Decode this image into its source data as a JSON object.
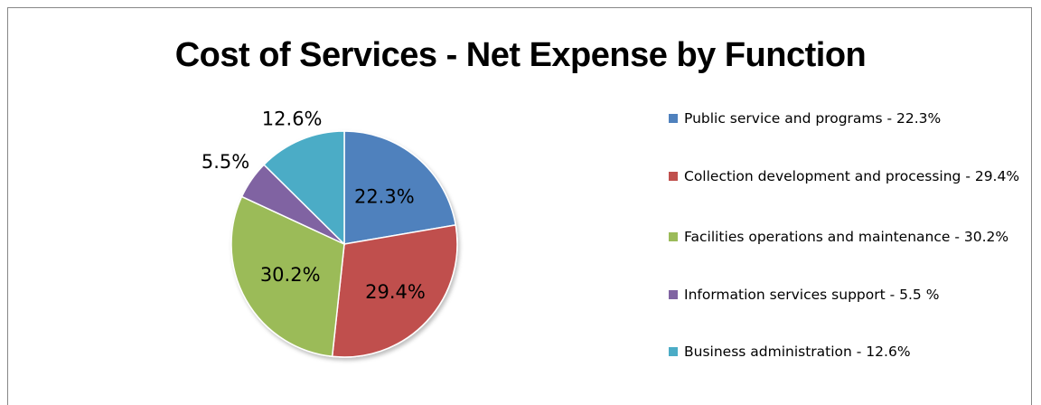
{
  "chart_data": {
    "type": "pie",
    "title": "Cost of Services - Net Expense by Function",
    "legend_position": "right",
    "slices": [
      {
        "label": "Public service and programs  - 22.3%",
        "value": 22.3,
        "data_label": "22.3%",
        "color": "#4f81bd"
      },
      {
        "label": "Collection development and processing - 29.4%",
        "value": 29.4,
        "data_label": "29.4%",
        "color": "#c0504d"
      },
      {
        "label": "Facilities operations and maintenance - 30.2%",
        "value": 30.2,
        "data_label": "30.2%",
        "color": "#9bbb59"
      },
      {
        "label": "Information services support - 5.5 %",
        "value": 5.5,
        "data_label": "5.5%",
        "color": "#8064a2"
      },
      {
        "label": "Business administration - 12.6%",
        "value": 12.6,
        "data_label": "12.6%",
        "color": "#4bacc6"
      }
    ]
  }
}
